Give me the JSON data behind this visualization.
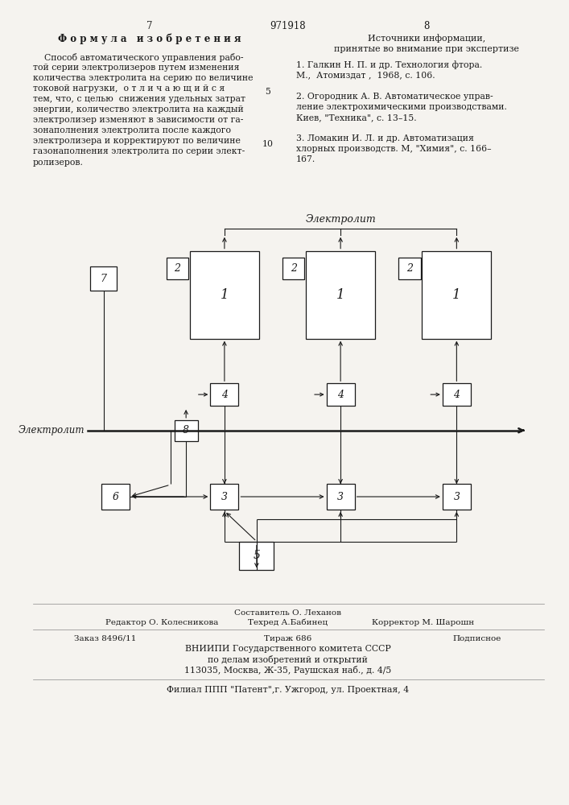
{
  "page_width": 7.07,
  "page_height": 10.0,
  "bg_color": "#f5f3ef",
  "text_color": "#1a1a1a",
  "top_left_num": "7",
  "top_center_num": "971918",
  "top_right_num": "8",
  "formula_title": "Ф о р м у л а   и з о б р е т е н и я",
  "formula_text": [
    "    Способ автоматического управления рабо-",
    "той серии электролизеров путем изменения",
    "количества электролита на серию по величине",
    "токовой нагрузки,  о т л и ч а ю щ и й с я",
    "тем, что, с целью  снижения удельных затрат",
    "энергии, количество электролита на каждый",
    "электролизер изменяют в зависимости от га-",
    "зонаполнения электролита после каждого",
    "электролизера и корректируют по величине",
    "газонаполнения электролита по серии элект-",
    "ролизеров."
  ],
  "sources_title": "Источники информации,",
  "sources_subtitle": "принятые во внимание при экспертизе",
  "sources": [
    "1. Галкин Н. П. и др. Технология фтора.",
    "М.,  Атомиздат ,  1968, с. 106.",
    "",
    "2. Огородник А. В. Автоматическое управ-",
    "ление электрохимическими производствами.",
    "Киев, \"Техника\", с. 13–15.",
    "",
    "3. Ломакин И. Л. и др. Автоматизация",
    "хлорных производств. М, \"Химия\", с. 166–",
    "167."
  ]
}
